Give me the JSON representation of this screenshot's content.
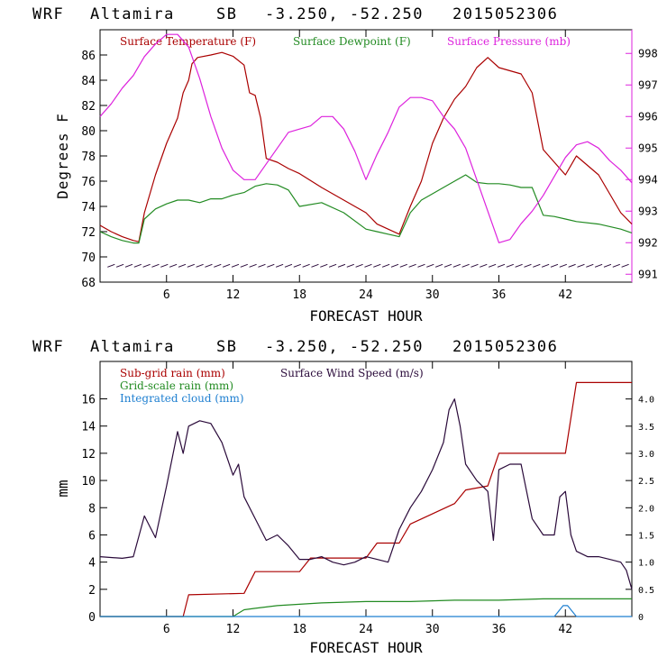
{
  "chart_data": [
    {
      "type": "line",
      "header": {
        "model": "WRF",
        "station": "Altamira",
        "code": "SB",
        "coords": "-3.250, -52.250",
        "run": "2015052306"
      },
      "xlabel": "FORECAST HOUR",
      "ylabel": "Degrees F",
      "xlim": [
        0,
        48
      ],
      "xticks": [
        6,
        12,
        18,
        24,
        30,
        36,
        42
      ],
      "ylim": [
        68,
        88
      ],
      "yticks": [
        68,
        70,
        72,
        74,
        76,
        78,
        80,
        82,
        84,
        86
      ],
      "y2lim": [
        990.75,
        998.75
      ],
      "y2ticks": [
        991,
        992,
        993,
        994,
        995,
        996,
        997,
        998
      ],
      "legend": [
        "Surface Temperature (F)",
        "Surface Dewpoint (F)",
        "Surface Pressure (mb)"
      ],
      "colors": {
        "temperature": "#aa0000",
        "dewpoint": "#228b22",
        "pressure": "#dd22dd",
        "wind": "#2a0a3a",
        "axes": "#000000",
        "right_axis": "#dd22dd"
      },
      "series": [
        {
          "name": "Surface Temperature (F)",
          "axis": "left",
          "x": [
            0,
            1,
            2,
            3,
            3.5,
            4,
            5,
            6,
            7,
            7.5,
            8,
            8.3,
            8.8,
            10,
            11,
            12,
            13,
            13.5,
            14,
            14.5,
            15,
            16,
            17,
            18,
            20,
            22,
            24,
            25,
            26,
            27,
            28,
            29,
            30,
            31,
            32,
            33,
            34,
            35,
            36,
            38,
            39,
            40,
            41,
            42,
            43,
            45,
            47,
            48
          ],
          "values": [
            72.5,
            72.0,
            71.6,
            71.3,
            71.2,
            73.5,
            76.5,
            79.0,
            81.0,
            83.0,
            84.0,
            85.3,
            85.8,
            86.0,
            86.2,
            85.9,
            85.2,
            83.0,
            82.8,
            81.0,
            77.8,
            77.5,
            77.0,
            76.6,
            75.5,
            74.5,
            73.5,
            72.6,
            72.2,
            71.8,
            74.0,
            76.0,
            79.0,
            81.0,
            82.5,
            83.5,
            85.0,
            85.8,
            85.0,
            84.5,
            83.0,
            78.5,
            77.5,
            76.5,
            78.0,
            76.5,
            73.5,
            72.6
          ]
        },
        {
          "name": "Surface Dewpoint (F)",
          "axis": "left",
          "x": [
            0,
            1,
            2,
            3,
            3.5,
            4,
            5,
            6,
            7,
            8,
            9,
            10,
            11,
            12,
            13,
            14,
            15,
            16,
            17,
            18,
            20,
            22,
            24,
            25,
            26,
            27,
            28,
            29,
            30,
            31,
            32,
            33,
            34,
            35,
            36,
            37,
            38,
            39,
            40,
            41,
            42,
            43,
            45,
            47,
            48
          ],
          "values": [
            72.0,
            71.6,
            71.3,
            71.1,
            71.1,
            73.0,
            73.8,
            74.2,
            74.5,
            74.5,
            74.3,
            74.6,
            74.6,
            74.9,
            75.1,
            75.6,
            75.8,
            75.7,
            75.3,
            74.0,
            74.3,
            73.5,
            72.2,
            72.0,
            71.8,
            71.6,
            73.5,
            74.5,
            75.0,
            75.5,
            76.0,
            76.5,
            75.9,
            75.8,
            75.8,
            75.7,
            75.5,
            75.5,
            73.3,
            73.2,
            73.0,
            72.8,
            72.6,
            72.2,
            71.9
          ]
        },
        {
          "name": "Surface Pressure (mb)",
          "axis": "right",
          "x": [
            0,
            1,
            2,
            3,
            4,
            5,
            6,
            7,
            8,
            9,
            10,
            11,
            12,
            13,
            14,
            15,
            16,
            17,
            18,
            19,
            20,
            21,
            22,
            23,
            24,
            25,
            26,
            27,
            28,
            29,
            30,
            31,
            32,
            33,
            34,
            35,
            36,
            37,
            38,
            39,
            40,
            41,
            42,
            43,
            44,
            45,
            46,
            47,
            48
          ],
          "values": [
            996.0,
            996.4,
            996.9,
            997.3,
            997.9,
            998.3,
            998.6,
            998.6,
            998.2,
            997.2,
            996.0,
            995.0,
            994.3,
            994.0,
            994.0,
            994.5,
            995.0,
            995.5,
            995.6,
            995.7,
            996.0,
            996.0,
            995.6,
            994.9,
            994.0,
            994.8,
            995.5,
            996.3,
            996.6,
            996.6,
            996.5,
            996.0,
            995.6,
            995.0,
            994.0,
            993.0,
            992.0,
            992.1,
            992.6,
            993.0,
            993.5,
            994.1,
            994.7,
            995.1,
            995.2,
            995.0,
            994.6,
            994.3,
            993.9
          ]
        }
      ]
    },
    {
      "type": "line",
      "header": {
        "model": "WRF",
        "station": "Altamira",
        "code": "SB",
        "coords": "-3.250, -52.250",
        "run": "2015052306"
      },
      "xlabel": "FORECAST HOUR",
      "ylabel": "mm",
      "xlim": [
        0,
        48
      ],
      "xticks": [
        6,
        12,
        18,
        24,
        30,
        36,
        42
      ],
      "ylim": [
        0,
        18.75
      ],
      "yticks": [
        0,
        2,
        4,
        6,
        8,
        10,
        12,
        14,
        16
      ],
      "y2lim": [
        0,
        4.69
      ],
      "y2ticks": [
        "0",
        "0.5",
        "1.0",
        "1.5",
        "2.0",
        "2.5",
        "3.0",
        "3.5",
        "4.0"
      ],
      "legend": [
        "Sub-grid rain (mm)",
        "Surface Wind Speed (m/s)",
        "Grid-scale rain (mm)",
        "Integrated cloud (mm)"
      ],
      "colors": {
        "subgrid": "#aa0000",
        "wind": "#2a0a3a",
        "gridscale": "#228b22",
        "cloud": "#1e7fd0",
        "axes": "#000000"
      },
      "series": [
        {
          "name": "Sub-grid rain (mm)",
          "axis": "left",
          "x": [
            0,
            7.5,
            8,
            13,
            14,
            18,
            19,
            24,
            25,
            27,
            28,
            32,
            33,
            35,
            36,
            42,
            43,
            48
          ],
          "values": [
            0,
            0,
            1.6,
            1.7,
            3.3,
            3.3,
            4.3,
            4.3,
            5.4,
            5.4,
            6.8,
            8.3,
            9.3,
            9.6,
            12.0,
            12.0,
            17.2,
            17.2
          ]
        },
        {
          "name": "Grid-scale rain (mm)",
          "axis": "left",
          "x": [
            0,
            12,
            13,
            14,
            16,
            18,
            20,
            24,
            28,
            32,
            36,
            40,
            42,
            44,
            48
          ],
          "values": [
            0,
            0,
            0.5,
            0.6,
            0.8,
            0.9,
            1.0,
            1.1,
            1.1,
            1.2,
            1.2,
            1.3,
            1.3,
            1.3,
            1.3
          ]
        },
        {
          "name": "Integrated cloud (mm)",
          "axis": "left",
          "x": [
            0,
            41,
            41.8,
            42.2,
            43,
            48
          ],
          "values": [
            0,
            0,
            0.8,
            0.8,
            0,
            0
          ]
        },
        {
          "name": "Surface Wind Speed (m/s)",
          "axis": "right",
          "x": [
            0,
            2,
            3,
            4,
            5,
            6,
            7,
            7.5,
            8,
            9,
            10,
            11,
            12,
            12.5,
            13,
            14,
            15,
            16,
            17,
            18,
            19,
            20,
            21,
            22,
            23,
            24,
            25,
            26,
            27,
            28,
            29,
            30,
            31,
            31.5,
            32,
            32.5,
            33,
            34,
            35,
            35.5,
            36,
            37,
            38,
            39,
            40,
            41,
            41.5,
            42,
            42.5,
            43,
            44,
            45,
            46,
            47,
            47.5,
            48
          ],
          "values": [
            1.1,
            1.07,
            1.1,
            1.85,
            1.45,
            2.4,
            3.4,
            3.0,
            3.5,
            3.6,
            3.55,
            3.2,
            2.6,
            2.8,
            2.2,
            1.8,
            1.4,
            1.5,
            1.3,
            1.05,
            1.05,
            1.1,
            1.0,
            0.95,
            1.0,
            1.1,
            1.05,
            1.0,
            1.6,
            2.0,
            2.3,
            2.7,
            3.2,
            3.8,
            4.0,
            3.5,
            2.8,
            2.5,
            2.3,
            1.4,
            2.7,
            2.8,
            2.8,
            1.8,
            1.5,
            1.5,
            2.2,
            2.3,
            1.5,
            1.2,
            1.1,
            1.1,
            1.05,
            1.0,
            0.85,
            0.5
          ]
        }
      ]
    }
  ]
}
